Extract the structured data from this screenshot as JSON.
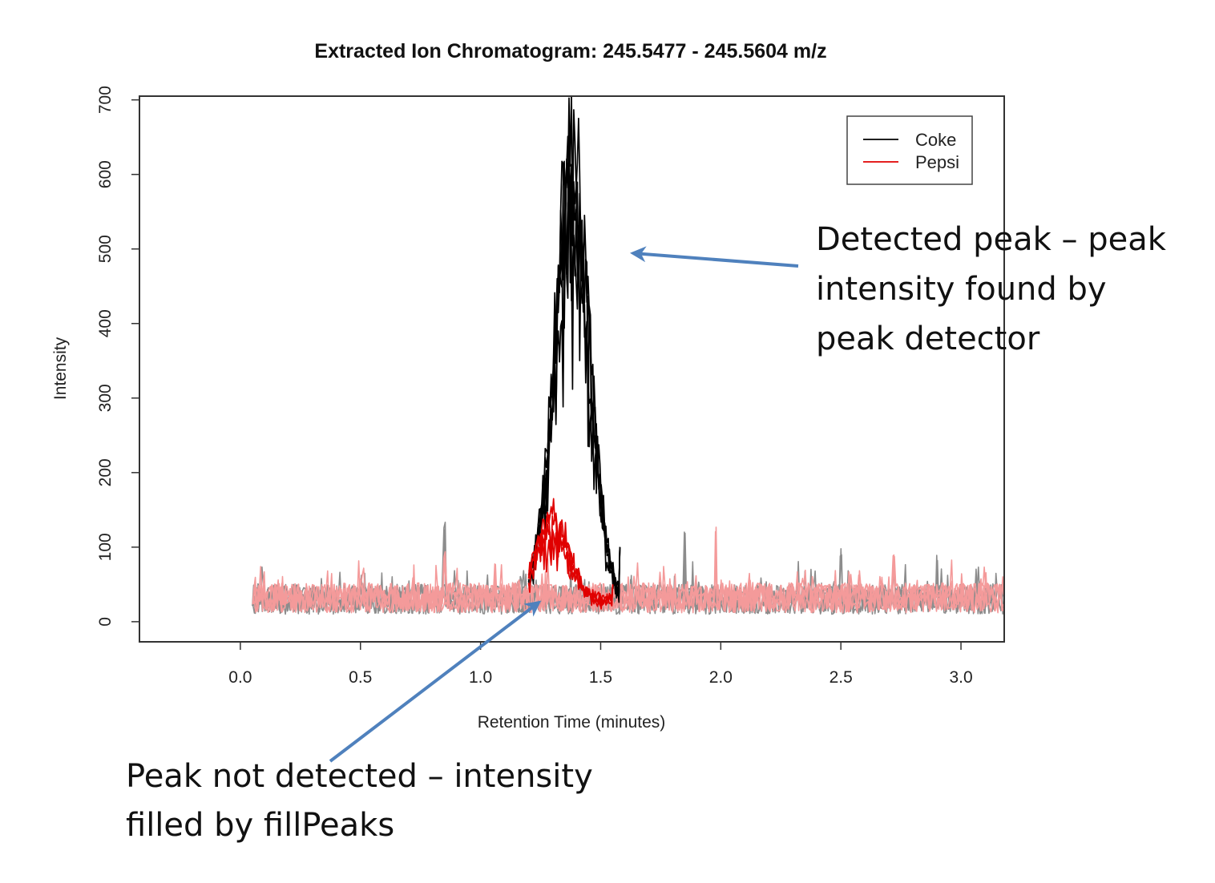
{
  "chart_data": {
    "type": "line",
    "title": "Extracted Ion Chromatogram: 245.5477 - 245.5604 m/z",
    "xlabel": "Retention Time (minutes)",
    "ylabel": "Intensity",
    "xlim": [
      -0.42,
      3.18
    ],
    "ylim": [
      -27,
      705
    ],
    "x_ticks": [
      "0.0",
      "0.5",
      "1.0",
      "1.5",
      "2.0",
      "2.5",
      "3.0"
    ],
    "y_ticks": [
      "0",
      "100",
      "200",
      "300",
      "400",
      "500",
      "600",
      "700"
    ],
    "grid": false,
    "legend_position": "top-right",
    "series": [
      {
        "name": "Coke",
        "color": "#000000",
        "background_color": "#8c8c8c",
        "baseline": {
          "x_start": 0.05,
          "x_end": 3.18,
          "level": 28,
          "noise": 20,
          "spikes": [
            [
              0.85,
              135
            ],
            [
              1.85,
              125
            ],
            [
              2.5,
              98
            ],
            [
              2.9,
              90
            ]
          ]
        },
        "peak": {
          "x_start": 1.2,
          "x_end": 1.58,
          "apex_x": 1.38,
          "apex_y": 675,
          "max_values": [
            540,
            675,
            620,
            635,
            578
          ],
          "end_value": 100
        }
      },
      {
        "name": "Pepsi",
        "color": "#e00000",
        "background_color": "#f49a9a",
        "baseline": {
          "x_start": 0.05,
          "x_end": 3.18,
          "level": 30,
          "noise": 20,
          "spikes": [
            [
              0.85,
              95
            ],
            [
              1.06,
              80
            ],
            [
              1.98,
              130
            ],
            [
              2.72,
              98
            ]
          ]
        },
        "peak": {
          "x_start": 1.2,
          "x_end": 1.55,
          "apex_x": 1.3,
          "apex_y": 130,
          "max_values": [
            130,
            118,
            108,
            95
          ],
          "end_value": 50
        }
      }
    ],
    "annotations": [
      {
        "text_lines": [
          "Detected peak – peak",
          "intensity found by",
          "peak detector"
        ],
        "arrow_target": [
          1.6,
          495
        ]
      },
      {
        "text_lines": [
          "Peak not detected – intensity",
          "filled by fillPeaks"
        ],
        "arrow_target": [
          1.27,
          30
        ]
      }
    ]
  }
}
